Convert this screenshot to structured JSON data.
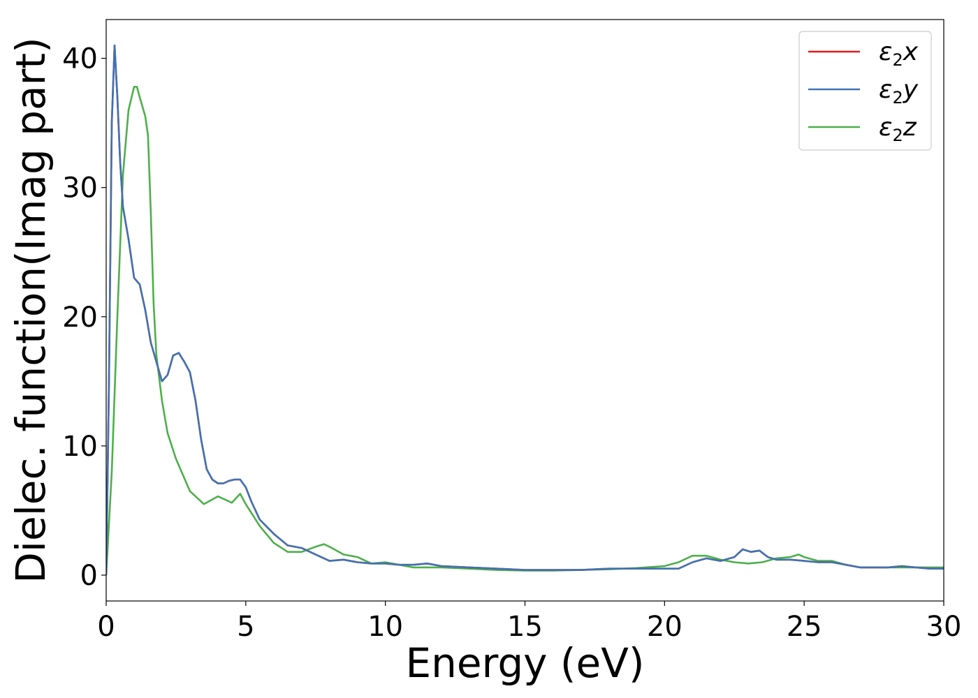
{
  "chart_data": {
    "type": "line",
    "title": "",
    "xlabel": "Energy (eV)",
    "ylabel": "Dielec. function(Imag part)",
    "xlim": [
      0,
      30
    ],
    "ylim": [
      -2,
      43
    ],
    "xticks": [
      0,
      5,
      10,
      15,
      20,
      25,
      30
    ],
    "yticks": [
      0,
      10,
      20,
      30,
      40
    ],
    "grid": false,
    "legend_position": "top-right",
    "series": [
      {
        "name": "ε₂x",
        "legend_base": "ε",
        "legend_sub": "2",
        "legend_tail": "x",
        "color": "#e41a1c",
        "x": [
          0,
          0.1,
          0.2,
          0.3,
          0.4,
          0.5,
          0.6,
          0.8,
          1.0,
          1.2,
          1.4,
          1.6,
          1.8,
          2.0,
          2.2,
          2.4,
          2.6,
          2.8,
          3.0,
          3.2,
          3.4,
          3.6,
          3.8,
          4.0,
          4.2,
          4.4,
          4.6,
          4.8,
          5.0,
          5.2,
          5.5,
          6.0,
          6.5,
          7.0,
          7.5,
          8.0,
          8.5,
          9.0,
          9.5,
          10.0,
          10.5,
          11.0,
          11.5,
          12.0,
          13.0,
          14.0,
          15.0,
          16.0,
          17.0,
          18.0,
          19.0,
          20.0,
          20.5,
          21.0,
          21.5,
          22.0,
          22.5,
          22.8,
          23.1,
          23.4,
          23.7,
          24.0,
          24.5,
          25.0,
          25.5,
          26.0,
          26.5,
          27.0,
          27.5,
          28.0,
          28.5,
          29.0,
          29.5,
          30.0
        ],
        "values": [
          0,
          15,
          35,
          41,
          37,
          32,
          28.5,
          26,
          23,
          22.5,
          20.5,
          18,
          16.5,
          15,
          15.5,
          17,
          17.2,
          16.5,
          15.7,
          13.5,
          10.5,
          8.2,
          7.4,
          7.1,
          7.1,
          7.3,
          7.4,
          7.4,
          6.8,
          5.7,
          4.3,
          3.2,
          2.3,
          2.1,
          1.6,
          1.1,
          1.2,
          1.0,
          0.9,
          0.9,
          0.8,
          0.8,
          0.9,
          0.7,
          0.6,
          0.5,
          0.4,
          0.4,
          0.4,
          0.5,
          0.5,
          0.5,
          0.5,
          1.0,
          1.3,
          1.1,
          1.4,
          2.0,
          1.8,
          1.9,
          1.4,
          1.2,
          1.2,
          1.1,
          1.0,
          1.0,
          0.8,
          0.6,
          0.6,
          0.6,
          0.7,
          0.6,
          0.5,
          0.5
        ]
      },
      {
        "name": "ε₂y",
        "legend_base": "ε",
        "legend_sub": "2",
        "legend_tail": "y",
        "color": "#3f73b4",
        "x": [
          0,
          0.1,
          0.2,
          0.3,
          0.4,
          0.5,
          0.6,
          0.8,
          1.0,
          1.2,
          1.4,
          1.6,
          1.8,
          2.0,
          2.2,
          2.4,
          2.6,
          2.8,
          3.0,
          3.2,
          3.4,
          3.6,
          3.8,
          4.0,
          4.2,
          4.4,
          4.6,
          4.8,
          5.0,
          5.2,
          5.5,
          6.0,
          6.5,
          7.0,
          7.5,
          8.0,
          8.5,
          9.0,
          9.5,
          10.0,
          10.5,
          11.0,
          11.5,
          12.0,
          13.0,
          14.0,
          15.0,
          16.0,
          17.0,
          18.0,
          19.0,
          20.0,
          20.5,
          21.0,
          21.5,
          22.0,
          22.5,
          22.8,
          23.1,
          23.4,
          23.7,
          24.0,
          24.5,
          25.0,
          25.5,
          26.0,
          26.5,
          27.0,
          27.5,
          28.0,
          28.5,
          29.0,
          29.5,
          30.0
        ],
        "values": [
          0,
          15,
          35,
          41,
          37,
          32,
          28.5,
          26,
          23,
          22.5,
          20.5,
          18,
          16.5,
          15,
          15.5,
          17,
          17.2,
          16.5,
          15.7,
          13.5,
          10.5,
          8.2,
          7.4,
          7.1,
          7.1,
          7.3,
          7.4,
          7.4,
          6.8,
          5.7,
          4.3,
          3.2,
          2.3,
          2.1,
          1.6,
          1.1,
          1.2,
          1.0,
          0.9,
          0.9,
          0.8,
          0.8,
          0.9,
          0.7,
          0.6,
          0.5,
          0.4,
          0.4,
          0.4,
          0.5,
          0.5,
          0.5,
          0.5,
          1.0,
          1.3,
          1.1,
          1.4,
          2.0,
          1.8,
          1.9,
          1.4,
          1.2,
          1.2,
          1.1,
          1.0,
          1.0,
          0.8,
          0.6,
          0.6,
          0.6,
          0.7,
          0.6,
          0.5,
          0.5
        ]
      },
      {
        "name": "ε₂z",
        "legend_base": "ε",
        "legend_sub": "2",
        "legend_tail": "z",
        "color": "#4daf4a",
        "x": [
          0,
          0.2,
          0.4,
          0.6,
          0.8,
          1.0,
          1.1,
          1.2,
          1.4,
          1.5,
          1.6,
          1.7,
          1.8,
          2.0,
          2.2,
          2.5,
          3.0,
          3.5,
          4.0,
          4.3,
          4.5,
          4.8,
          5.0,
          5.5,
          6.0,
          6.5,
          7.0,
          7.5,
          7.8,
          8.0,
          8.5,
          9.0,
          9.5,
          10.0,
          10.5,
          11.0,
          12.0,
          13.0,
          14.0,
          15.0,
          16.0,
          17.0,
          18.0,
          19.0,
          20.0,
          20.5,
          21.0,
          21.5,
          22.0,
          22.5,
          23.0,
          23.5,
          24.0,
          24.5,
          24.8,
          25.0,
          25.5,
          26.0,
          26.5,
          27.0,
          28.0,
          29.0,
          30.0
        ],
        "values": [
          0,
          8,
          20,
          31,
          36,
          37.8,
          37.8,
          37,
          35.5,
          34,
          28,
          21,
          17,
          13.5,
          11,
          9,
          6.5,
          5.5,
          6.1,
          5.8,
          5.6,
          6.3,
          5.5,
          3.8,
          2.5,
          1.8,
          1.8,
          2.2,
          2.4,
          2.2,
          1.6,
          1.4,
          0.9,
          1.0,
          0.8,
          0.6,
          0.6,
          0.5,
          0.4,
          0.35,
          0.35,
          0.4,
          0.45,
          0.55,
          0.7,
          1.0,
          1.5,
          1.5,
          1.2,
          1.0,
          0.9,
          1.0,
          1.3,
          1.4,
          1.6,
          1.4,
          1.1,
          1.1,
          0.8,
          0.6,
          0.6,
          0.6,
          0.6
        ]
      }
    ]
  }
}
